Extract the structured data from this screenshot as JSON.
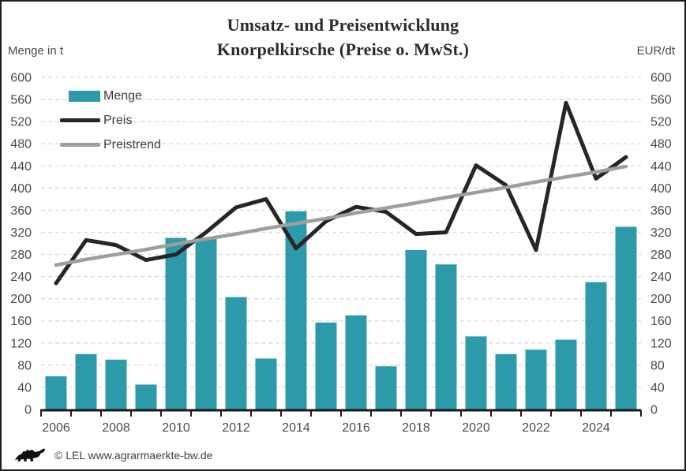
{
  "title": {
    "line1": "Umsatz- und Preisentwicklung",
    "line2": "Knorpelkirsche (Preise o. MwSt.)"
  },
  "axis_units": {
    "left": "Menge in t",
    "right": "EUR/dt"
  },
  "legend": [
    {
      "label": "Menge",
      "type": "bar",
      "color": "#2d9aa9"
    },
    {
      "label": "Preis",
      "type": "line",
      "color": "#262626"
    },
    {
      "label": "Preistrend",
      "type": "line",
      "color": "#9e9e9e"
    }
  ],
  "footer": {
    "copyright": "© LEL www.agrarmaerkte-bw.de",
    "logo_icon": "baden-wuerttemberg-lion"
  },
  "colors": {
    "bar": "#2d9aa9",
    "preis_line": "#262626",
    "trend_line": "#9e9e9e",
    "grid": "#d9d9d9",
    "axis": "#1a1a1a",
    "tick_text": "#4b4b4b",
    "title_text": "#2b2b2b",
    "background": "#ffffff"
  },
  "chart_data": {
    "type": "bar",
    "subtype": "combo bar + line, dual axis (values identical scale both sides)",
    "title": "Umsatz- und Preisentwicklung Knorpelkirsche (Preise o. MwSt.)",
    "ylabel_left": "Menge in t",
    "ylabel_right": "EUR/dt",
    "ylim": [
      0,
      600
    ],
    "ytick_step": 40,
    "grid": "horizontal dashed",
    "legend_position": "top-left inside plot",
    "categories": [
      2006,
      2007,
      2008,
      2009,
      2010,
      2011,
      2012,
      2013,
      2014,
      2015,
      2016,
      2017,
      2018,
      2019,
      2020,
      2021,
      2022,
      2023,
      2024,
      2025
    ],
    "xtick_labels": [
      2006,
      2008,
      2010,
      2012,
      2014,
      2016,
      2018,
      2020,
      2022,
      2024
    ],
    "series": [
      {
        "name": "Menge",
        "type": "bar",
        "axis": "left",
        "unit": "t",
        "color": "#2d9aa9",
        "values": [
          60,
          100,
          90,
          45,
          310,
          310,
          203,
          92,
          358,
          157,
          170,
          78,
          288,
          262,
          132,
          100,
          108,
          126,
          230,
          330
        ]
      },
      {
        "name": "Preis",
        "type": "line",
        "axis": "right",
        "unit": "EUR/dt",
        "color": "#262626",
        "values": [
          228,
          306,
          297,
          270,
          280,
          320,
          365,
          380,
          291,
          340,
          366,
          357,
          317,
          320,
          441,
          405,
          288,
          554,
          417,
          456
        ]
      },
      {
        "name": "Preistrend",
        "type": "line",
        "axis": "right",
        "unit": "EUR/dt",
        "color": "#9e9e9e",
        "values": [
          261,
          271,
          280,
          289,
          299,
          308,
          317,
          327,
          336,
          345,
          355,
          364,
          373,
          383,
          392,
          401,
          411,
          420,
          429,
          439
        ]
      }
    ]
  }
}
